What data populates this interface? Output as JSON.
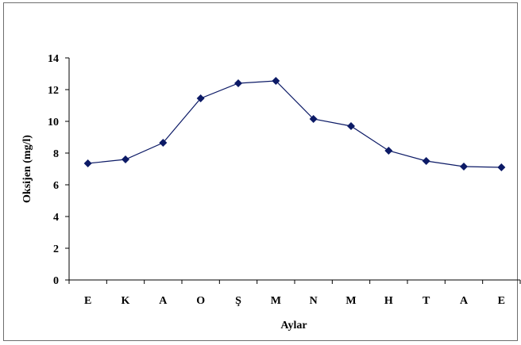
{
  "chart_data": {
    "type": "line",
    "title": "",
    "xlabel": "Aylar",
    "ylabel": "Oksijen (mg/l)",
    "categories": [
      "E",
      "K",
      "A",
      "O",
      "Ş",
      "M",
      "N",
      "M",
      "H",
      "T",
      "A",
      "E"
    ],
    "series": [
      {
        "values": [
          7.35,
          7.6,
          8.65,
          11.45,
          12.4,
          12.55,
          10.15,
          9.7,
          8.15,
          7.5,
          7.15,
          7.1
        ],
        "color": "#0c1a66",
        "marker": "diamond"
      }
    ],
    "ylim": [
      0,
      14
    ],
    "yticks": [
      0,
      2,
      4,
      6,
      8,
      10,
      12,
      14
    ],
    "grid": false,
    "legend": "none"
  }
}
